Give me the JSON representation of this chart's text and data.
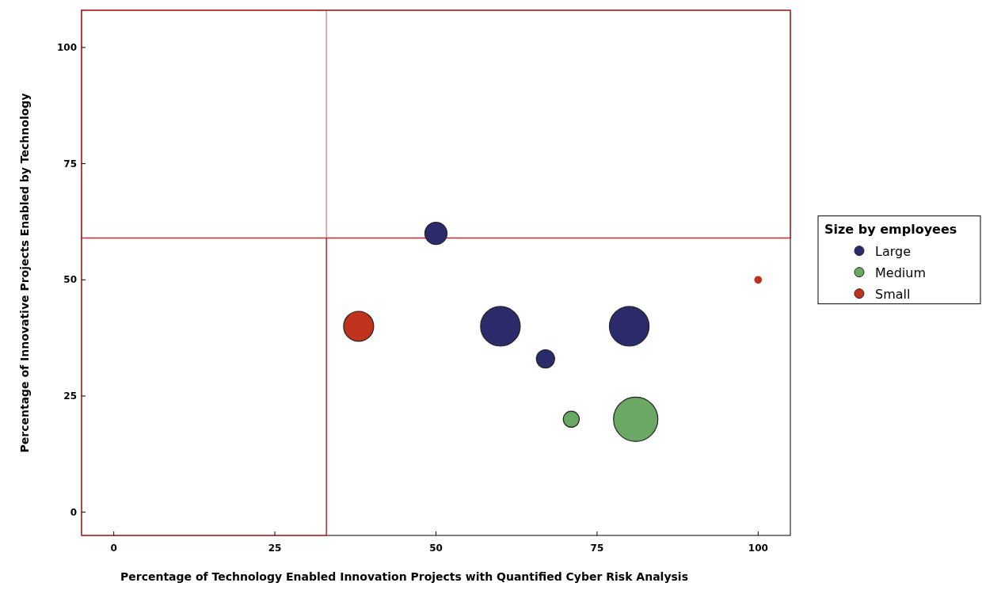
{
  "chart_data": {
    "type": "bubble",
    "xlabel": "Percentage of Technology Enabled Innovation Projects with Quantified Cyber Risk Analysis",
    "ylabel": "Percentage of Innovative Projects Enabled by Technology",
    "legend_title": "Size by employees",
    "legend": "right",
    "xlim": [
      -5,
      105
    ],
    "ylim": [
      -5,
      108
    ],
    "xticks": [
      0,
      25,
      50,
      75,
      100
    ],
    "yticks": [
      0,
      25,
      50,
      75,
      100
    ],
    "grid": false,
    "bands": [
      {
        "axis": "x",
        "from": -5,
        "to": 33,
        "color": "#b03030"
      },
      {
        "axis": "y",
        "from": 59,
        "to": 108,
        "color": "#b03030"
      }
    ],
    "series": [
      {
        "name": "Large",
        "color": "#2b2a6b",
        "x": [
          50,
          60,
          80,
          67
        ],
        "values": [
          60,
          40,
          40,
          33
        ],
        "sizes": [
          0.25,
          0.8,
          0.8,
          0.17
        ]
      },
      {
        "name": "Medium",
        "color": "#6aa864",
        "x": [
          71,
          81
        ],
        "values": [
          20,
          20
        ],
        "sizes": [
          0.13,
          1
        ]
      },
      {
        "name": "Small",
        "color": "#c0321e",
        "x": [
          38,
          100
        ],
        "values": [
          40,
          50
        ],
        "sizes": [
          0.46,
          0.03
        ]
      }
    ]
  }
}
